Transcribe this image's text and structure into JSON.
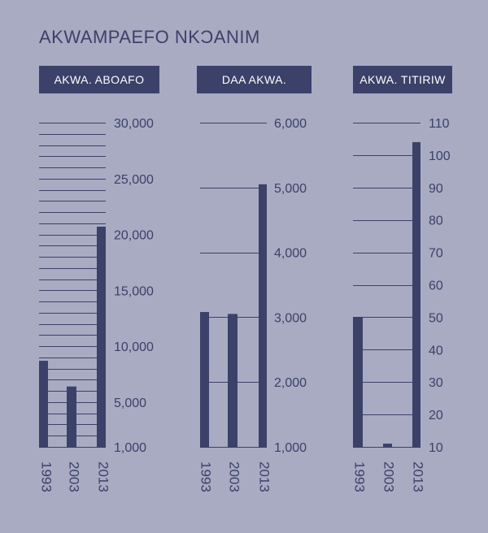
{
  "title": "AKWAMPAEFO NKƆANIM",
  "chart_data": [
    {
      "type": "bar",
      "title": "AKWA. ABOAFO",
      "categories": [
        "1993",
        "2003",
        "2013"
      ],
      "values": [
        8700,
        6400,
        20700
      ],
      "ylim": [
        1000,
        30000
      ],
      "yticks": [
        "1,000",
        "5,000",
        "10,000",
        "15,000",
        "20,000",
        "25,000",
        "30,000"
      ],
      "grid": true
    },
    {
      "type": "bar",
      "title": "DAA AKWA.",
      "categories": [
        "1993",
        "2003",
        "2013"
      ],
      "values": [
        3080,
        3050,
        5050
      ],
      "ylim": [
        1000,
        6000
      ],
      "yticks": [
        "1,000",
        "2,000",
        "3,000",
        "4,000",
        "5,000",
        "6,000"
      ],
      "grid": true
    },
    {
      "type": "bar",
      "title": "AKWA. TITIRIW",
      "categories": [
        "1993",
        "2003",
        "2013"
      ],
      "values": [
        50,
        11,
        104
      ],
      "ylim": [
        10,
        110
      ],
      "yticks": [
        "10",
        "20",
        "30",
        "40",
        "50",
        "60",
        "70",
        "80",
        "90",
        "100",
        "110"
      ],
      "grid": true
    }
  ],
  "colors": {
    "background": "#a9abc3",
    "bar": "#3b4169",
    "header_text": "#ffffff"
  }
}
